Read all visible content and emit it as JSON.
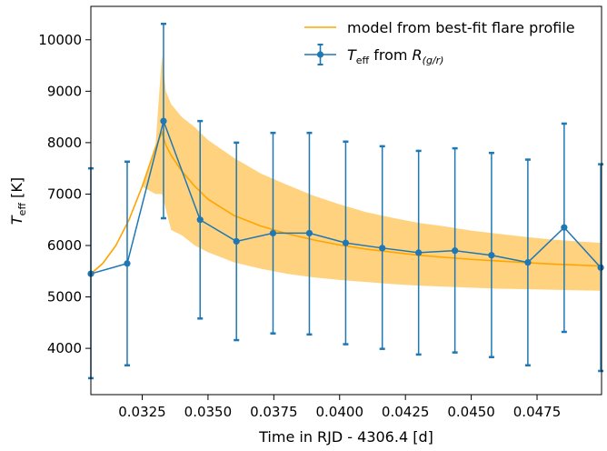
{
  "chart_data": {
    "type": "line",
    "xlabel": "Time in RJD - 4306.4  [d]",
    "ylabel_main": "T",
    "ylabel_sub": "eff",
    "ylabel_unit": " [K]",
    "xlim": [
      0.03055,
      0.04995
    ],
    "ylim": [
      3100,
      10650
    ],
    "xticks": [
      0.0325,
      0.035,
      0.0375,
      0.04,
      0.0425,
      0.045,
      0.0475
    ],
    "xtick_labels": [
      "0.0325",
      "0.0350",
      "0.0375",
      "0.0400",
      "0.0425",
      "0.0450",
      "0.0475"
    ],
    "yticks": [
      4000,
      5000,
      6000,
      7000,
      8000,
      9000,
      10000
    ],
    "ytick_labels": [
      "4000",
      "5000",
      "6000",
      "7000",
      "8000",
      "9000",
      "10000"
    ],
    "legend_position": "top-right",
    "series": [
      {
        "name": "model from best-fit flare profile",
        "kind": "model-line-with-band",
        "color": "#ffa500",
        "band_color": "#ffd27f",
        "x": [
          0.03055,
          0.031,
          0.0315,
          0.032,
          0.0325,
          0.033,
          0.03325,
          0.0334,
          0.0336,
          0.034,
          0.0345,
          0.035,
          0.036,
          0.037,
          0.038,
          0.039,
          0.04,
          0.041,
          0.042,
          0.043,
          0.044,
          0.045,
          0.046,
          0.047,
          0.048,
          0.049,
          0.04995
        ],
        "y": [
          5450,
          5650,
          6000,
          6500,
          7150,
          7900,
          8200,
          7950,
          7750,
          7450,
          7150,
          6900,
          6580,
          6380,
          6230,
          6110,
          6010,
          5930,
          5870,
          5810,
          5770,
          5730,
          5700,
          5670,
          5640,
          5620,
          5600
        ],
        "upper": [
          5450,
          5650,
          6000,
          6500,
          7150,
          7900,
          9700,
          9000,
          8750,
          8500,
          8300,
          8050,
          7700,
          7400,
          7180,
          6970,
          6800,
          6650,
          6540,
          6440,
          6370,
          6290,
          6230,
          6170,
          6120,
          6080,
          6050
        ],
        "lower": [
          5450,
          5650,
          6000,
          6500,
          7150,
          7000,
          7000,
          6700,
          6300,
          6200,
          6000,
          5870,
          5670,
          5550,
          5450,
          5380,
          5330,
          5290,
          5250,
          5220,
          5200,
          5180,
          5160,
          5150,
          5140,
          5130,
          5120
        ]
      },
      {
        "name": "T_eff from R_(g/r)",
        "legend_main": "T",
        "legend_sub": "eff",
        "legend_mid": " from ",
        "legend_r": "R",
        "legend_rsub": "(g/r)",
        "kind": "errorbar",
        "color": "#1f77b4",
        "x": [
          0.03055,
          0.03193,
          0.03331,
          0.0347,
          0.03608,
          0.03747,
          0.03885,
          0.04023,
          0.04162,
          0.043,
          0.04438,
          0.04577,
          0.04715,
          0.04853,
          0.04992
        ],
        "y": [
          5450,
          5650,
          8420,
          6500,
          6080,
          6240,
          6240,
          6050,
          5950,
          5860,
          5900,
          5810,
          5670,
          6350,
          5570
        ],
        "yerr_lo": [
          2030,
          1980,
          1890,
          1920,
          1920,
          1950,
          1970,
          1970,
          1960,
          1980,
          1980,
          1980,
          2000,
          2030,
          2010
        ],
        "yerr_hi": [
          2050,
          1980,
          1890,
          1920,
          1920,
          1950,
          1950,
          1970,
          1980,
          1980,
          1990,
          1990,
          2000,
          2020,
          2010
        ]
      }
    ]
  }
}
